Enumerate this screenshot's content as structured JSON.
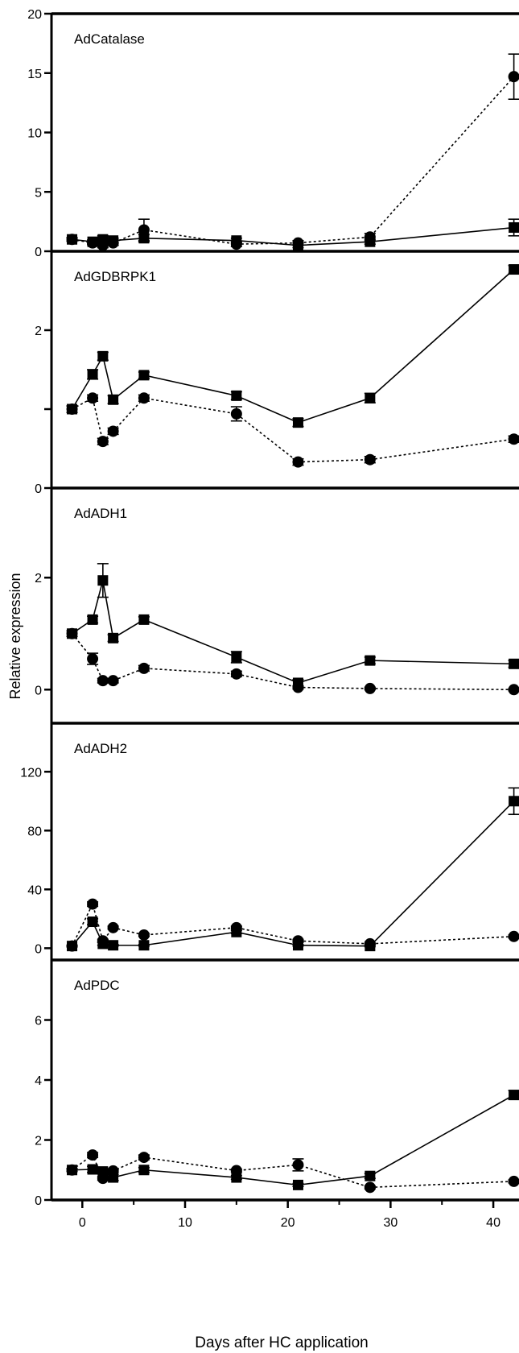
{
  "chart_data": {
    "type": "line",
    "xlabel": "Days after HC application",
    "ylabel": "Relative expression",
    "xlim": [
      -3,
      42.5
    ],
    "x_ticks": [
      0,
      10,
      20,
      30,
      40
    ],
    "x_tick_labels": [
      "0",
      "10",
      "20",
      "30",
      "40"
    ],
    "grid": false,
    "series_styles": [
      {
        "marker": "square",
        "line": "solid"
      },
      {
        "marker": "circle",
        "line": "dotted"
      }
    ],
    "panels": [
      {
        "title": "AdCatalase",
        "ylim": [
          0,
          20
        ],
        "y_ticks": [
          0,
          5,
          10,
          15,
          20
        ],
        "y_tick_labels": [
          "0",
          "5",
          "10",
          "15",
          "20"
        ],
        "series": [
          {
            "x": [
              -1,
              1,
              2,
              3,
              6,
              15,
              21,
              28,
              42
            ],
            "y": [
              1.0,
              0.8,
              1.0,
              0.9,
              1.1,
              0.9,
              0.5,
              0.8,
              2.0
            ],
            "err": [
              0.15,
              0.15,
              0.3,
              0.2,
              0.3,
              0.2,
              0.2,
              0.2,
              0.7
            ]
          },
          {
            "x": [
              -1,
              1,
              2,
              3,
              6,
              15,
              21,
              28,
              42
            ],
            "y": [
              1.0,
              0.7,
              0.5,
              0.7,
              1.8,
              0.6,
              0.7,
              1.2,
              14.7
            ],
            "err": [
              0.15,
              0.15,
              0.2,
              0.2,
              0.9,
              0.2,
              0.2,
              0.3,
              1.9
            ]
          }
        ]
      },
      {
        "title": "AdGDBRPK1",
        "ylim": [
          0,
          3
        ],
        "y_ticks": [
          0,
          1,
          2
        ],
        "y_tick_labels": [
          "0",
          "",
          "2"
        ],
        "series": [
          {
            "x": [
              -1,
              1,
              2,
              3,
              6,
              15,
              21,
              28,
              42
            ],
            "y": [
              1.0,
              1.44,
              1.67,
              1.12,
              1.43,
              1.17,
              0.83,
              1.14,
              2.77
            ],
            "err": [
              0.04,
              0.06,
              0.05,
              0.05,
              0.04,
              0.05,
              0.05,
              0.06,
              0.05
            ]
          },
          {
            "x": [
              -1,
              1,
              2,
              3,
              6,
              15,
              21,
              28,
              42
            ],
            "y": [
              1.0,
              1.14,
              0.59,
              0.72,
              1.14,
              0.94,
              0.33,
              0.36,
              0.62
            ],
            "err": [
              0.04,
              0.04,
              0.04,
              0.04,
              0.04,
              0.09,
              0.04,
              0.04,
              0.04
            ]
          }
        ]
      },
      {
        "title": "AdADH1",
        "ylim": [
          -0.6,
          3.6
        ],
        "y_ticks": [
          0,
          2
        ],
        "y_tick_labels": [
          "0",
          "2"
        ],
        "series": [
          {
            "x": [
              -1,
              1,
              2,
              3,
              6,
              15,
              21,
              28,
              42
            ],
            "y": [
              1.0,
              1.25,
              1.95,
              0.92,
              1.25,
              0.58,
              0.12,
              0.52,
              0.46
            ],
            "err": [
              0.05,
              0.06,
              0.3,
              0.06,
              0.05,
              0.1,
              0.06,
              0.06,
              0.06
            ]
          },
          {
            "x": [
              -1,
              1,
              2,
              3,
              6,
              15,
              21,
              28,
              42
            ],
            "y": [
              1.0,
              0.55,
              0.16,
              0.16,
              0.38,
              0.28,
              0.04,
              0.02,
              0.0
            ],
            "err": [
              0.05,
              0.1,
              0.04,
              0.04,
              0.05,
              0.05,
              0.03,
              0.02,
              0.02
            ]
          }
        ]
      },
      {
        "title": "AdADH2",
        "ylim": [
          -8,
          153
        ],
        "y_ticks": [
          0,
          40,
          80,
          120
        ],
        "y_tick_labels": [
          "0",
          "40",
          "80",
          "120"
        ],
        "series": [
          {
            "x": [
              -1,
              1,
              2,
              3,
              6,
              15,
              21,
              28,
              42
            ],
            "y": [
              1.5,
              18,
              3,
              2,
              2,
              11,
              2,
              1.5,
              100
            ],
            "err": [
              0.5,
              2,
              1,
              0.5,
              0.5,
              1,
              0.5,
              0.5,
              9
            ]
          },
          {
            "x": [
              -1,
              1,
              2,
              3,
              6,
              15,
              21,
              28,
              42
            ],
            "y": [
              1.5,
              30,
              5,
              14,
              9,
              14,
              5,
              3,
              8
            ],
            "err": [
              0.5,
              1.5,
              1,
              1,
              1,
              1,
              1,
              0.5,
              1
            ]
          }
        ]
      },
      {
        "title": "AdPDC",
        "ylim": [
          0,
          8
        ],
        "y_ticks": [
          0,
          2,
          4,
          6
        ],
        "y_tick_labels": [
          "0",
          "2",
          "4",
          "6"
        ],
        "series": [
          {
            "x": [
              -1,
              1,
              2,
              3,
              6,
              15,
              21,
              28,
              42
            ],
            "y": [
              1.0,
              1.02,
              0.95,
              0.75,
              1.0,
              0.75,
              0.5,
              0.8,
              3.5
            ],
            "err": [
              0.05,
              0.1,
              0.08,
              0.1,
              0.08,
              0.06,
              0.05,
              0.08,
              0.15
            ]
          },
          {
            "x": [
              -1,
              1,
              2,
              3,
              6,
              15,
              21,
              28,
              42
            ],
            "y": [
              1.0,
              1.5,
              0.72,
              0.97,
              1.42,
              0.98,
              1.17,
              0.42,
              0.62
            ],
            "err": [
              0.05,
              0.08,
              0.06,
              0.05,
              0.08,
              0.05,
              0.2,
              0.05,
              0.05
            ]
          }
        ]
      }
    ]
  }
}
